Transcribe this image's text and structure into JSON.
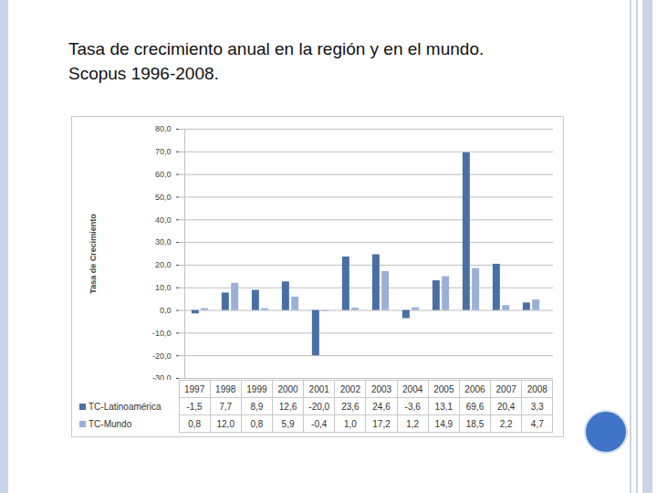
{
  "chart_data": {
    "type": "bar",
    "title": "Tasa de crecimiento anual en la región y en el mundo.\nScopus 1996-2008.",
    "y_label": "Tasa de Crecimiento",
    "categories": [
      "1997",
      "1998",
      "1999",
      "2000",
      "2001",
      "2002",
      "2003",
      "2004",
      "2005",
      "2006",
      "2007",
      "2008"
    ],
    "series": [
      {
        "name": "TC-Latinoamérica",
        "color": "#4a6fa5",
        "values": [
          -1.5,
          7.7,
          8.9,
          12.6,
          -20.0,
          23.6,
          24.6,
          -3.6,
          13.1,
          69.6,
          20.4,
          3.3
        ],
        "value_labels": [
          "-1,5",
          "7,7",
          "8,9",
          "12,6",
          "-20,0",
          "23,6",
          "24,6",
          "-3,6",
          "13,1",
          "69,6",
          "20,4",
          "3,3"
        ]
      },
      {
        "name": "TC-Mundo",
        "color": "#9bb0d8",
        "values": [
          0.8,
          12.0,
          0.8,
          5.9,
          -0.4,
          1.0,
          17.2,
          1.2,
          14.9,
          18.5,
          2.2,
          4.7
        ],
        "value_labels": [
          "0,8",
          "12,0",
          "0,8",
          "5,9",
          "-0,4",
          "1,0",
          "17,2",
          "1,2",
          "14,9",
          "18,5",
          "2,2",
          "4,7"
        ]
      }
    ],
    "ylim": [
      -30,
      80
    ],
    "yticks": [
      {
        "value": -30,
        "label": "-30,0"
      },
      {
        "value": -20,
        "label": "-20,0"
      },
      {
        "value": -10,
        "label": "-10,0"
      },
      {
        "value": 0,
        "label": "0,0"
      },
      {
        "value": 10,
        "label": "10,0"
      },
      {
        "value": 20,
        "label": "20,0"
      },
      {
        "value": 30,
        "label": "30,0"
      },
      {
        "value": 40,
        "label": "40,0"
      },
      {
        "value": 50,
        "label": "50,0"
      },
      {
        "value": 60,
        "label": "60,0"
      },
      {
        "value": 70,
        "label": "70,0"
      },
      {
        "value": 80,
        "label": "80,0"
      }
    ],
    "grid": true
  }
}
